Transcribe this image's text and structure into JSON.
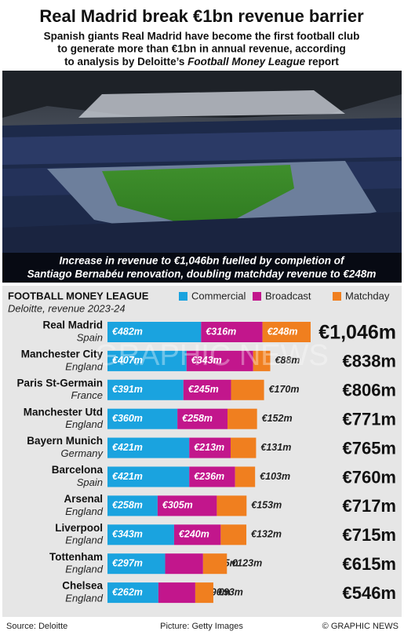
{
  "header": {
    "title": "Real Madrid break €1bn revenue barrier",
    "subtitle_lines": [
      "Spanish giants Real Madrid have become the first football club",
      "to generate more than €1bn in annual revenue, according"
    ],
    "subtitle_last": {
      "before": "to analysis by Deloitte’s",
      "italic": "Football Money League",
      "after": "report"
    }
  },
  "photo": {
    "caption_lines": [
      "Increase in revenue to €1,046bn fuelled by completion of",
      "Santiago Bernabéu renovation, doubling matchday revenue to €248m"
    ]
  },
  "chart_data": {
    "type": "bar",
    "orientation": "horizontal",
    "stacked": true,
    "title": "FOOTBALL MONEY LEAGUE",
    "subtitle": "Deloitte, revenue 2023-24",
    "categories": [
      "Real Madrid",
      "Manchester City",
      "Paris St-Germain",
      "Manchester Utd",
      "Bayern Munich",
      "Barcelona",
      "Arsenal",
      "Liverpool",
      "Tottenham",
      "Chelsea"
    ],
    "category_sublabels": [
      "Spain",
      "England",
      "France",
      "England",
      "Germany",
      "Spain",
      "England",
      "England",
      "England",
      "England"
    ],
    "series": [
      {
        "name": "Commercial",
        "color": "#1aa3df",
        "values": [
          482,
          407,
          391,
          360,
          421,
          421,
          258,
          343,
          297,
          262
        ],
        "value_labels": [
          "€482m",
          "€407m",
          "€391m",
          "€360m",
          "€421m",
          "€421m",
          "€258m",
          "€343m",
          "€297m",
          "€262m"
        ]
      },
      {
        "name": "Broadcast",
        "color": "#c2168c",
        "values": [
          316,
          343,
          245,
          258,
          213,
          236,
          305,
          240,
          195,
          190
        ],
        "value_labels": [
          "€316m",
          "€343m",
          "€245m",
          "€258m",
          "€213m",
          "€236m",
          "€305m",
          "€240m",
          "€195m",
          "€190m"
        ]
      },
      {
        "name": "Matchday",
        "color": "#f07f1f",
        "values": [
          248,
          88,
          170,
          152,
          131,
          103,
          153,
          132,
          123,
          93
        ],
        "value_labels": [
          "€248m",
          "€88m",
          "€170m",
          "€152m",
          "€131m",
          "€103m",
          "€153m",
          "€132m",
          "€123m",
          "€93m"
        ]
      }
    ],
    "totals": {
      "values": [
        1046,
        838,
        806,
        771,
        765,
        760,
        717,
        715,
        615,
        546
      ],
      "value_labels": [
        "€1,046m",
        "€838m",
        "€806m",
        "€771m",
        "€765m",
        "€760m",
        "€717m",
        "€715m",
        "€615m",
        "€546m"
      ]
    }
  },
  "footer": {
    "source": "Source: Deloitte",
    "picture": "Picture: Getty Images",
    "credit": "© GRAPHIC NEWS"
  },
  "watermark": "GRAPHIC NEWS"
}
